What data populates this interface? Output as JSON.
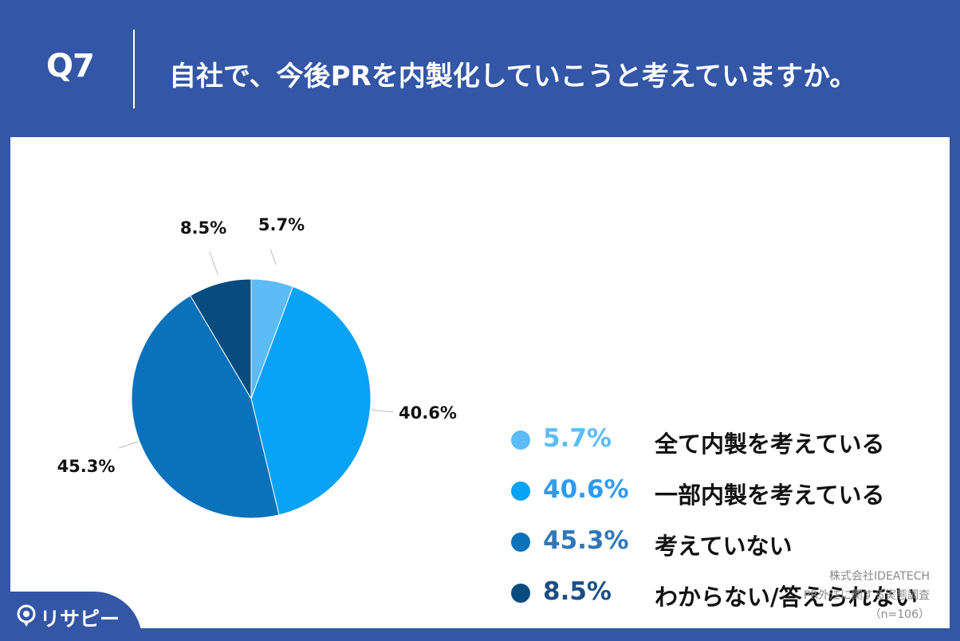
{
  "header": {
    "question_number": "Q7",
    "question_text": "自社で、今後PRを内製化していこうと考えていますか。"
  },
  "chart_data": {
    "type": "pie",
    "start_angle_deg": 0,
    "direction": "clockwise",
    "slices": [
      {
        "label": "全て内製を考えている",
        "value": 5.7,
        "display": "5.7%",
        "color": "#5bbcf8"
      },
      {
        "label": "一部内製を考えている",
        "value": 40.6,
        "display": "40.6%",
        "color": "#08a2f6"
      },
      {
        "label": "考えていない",
        "value": 45.3,
        "display": "45.3%",
        "color": "#0a71bb"
      },
      {
        "label": "わからない/答えられない",
        "value": 8.5,
        "display": "8.5%",
        "color": "#074b7f"
      }
    ],
    "legend_position": "right",
    "legend_pct_colors": [
      "#5bbcf8",
      "#2f9bf0",
      "#2f77ba",
      "#1c4f85"
    ]
  },
  "source": {
    "line1": "株式会社IDEATECH",
    "line2": "PR外注に関する実態調査",
    "line3": "（n=106）"
  },
  "logo": {
    "text": "リサピー"
  },
  "colors": {
    "background": "#3356a6",
    "panel": "#ffffff",
    "label_line": "#bdbdbd"
  }
}
